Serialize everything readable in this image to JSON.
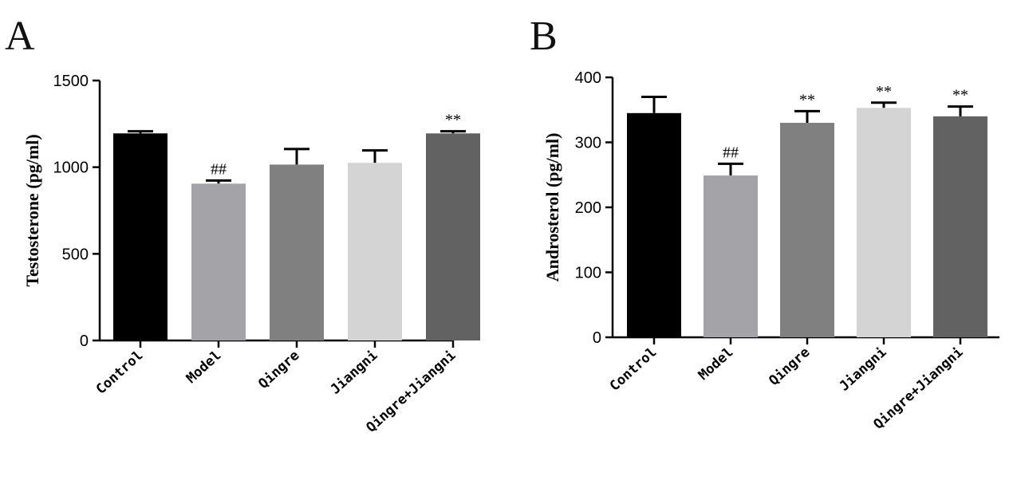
{
  "chart_data": [
    {
      "type": "bar",
      "panel": "A",
      "ylabel": "Testosterone (pg/ml)",
      "ylim": [
        0,
        1500
      ],
      "yticks": [
        "0",
        "500",
        "1000",
        "1500"
      ],
      "ytick_values": [
        0,
        500,
        1000,
        1500
      ],
      "categories": [
        "Control",
        "Model",
        "Qingre",
        "Jiangni",
        "Qingre+Jiangni"
      ],
      "values": [
        1195,
        905,
        1015,
        1025,
        1195
      ],
      "errors": [
        12,
        18,
        90,
        72,
        12
      ],
      "colors": [
        "#000000",
        "#a4a4a8",
        "#808080",
        "#d4d4d4",
        "#626262"
      ],
      "significance": [
        "",
        "##",
        "",
        "",
        "**"
      ],
      "grid": false,
      "legend": "none"
    },
    {
      "type": "bar",
      "panel": "B",
      "ylabel": "Androsterol (pg/ml)",
      "ylim": [
        0,
        400
      ],
      "yticks": [
        "0",
        "100",
        "200",
        "300",
        "400"
      ],
      "ytick_values": [
        0,
        100,
        200,
        300,
        400
      ],
      "categories": [
        "Control",
        "Model",
        "Qingre",
        "Jiangni",
        "Qingre+Jiangni"
      ],
      "values": [
        345,
        249,
        330,
        353,
        340
      ],
      "errors": [
        25,
        18,
        18,
        8,
        15
      ],
      "colors": [
        "#000000",
        "#a4a4a8",
        "#808080",
        "#d4d4d4",
        "#626262"
      ],
      "significance": [
        "",
        "##",
        "**",
        "**",
        "**"
      ],
      "grid": false,
      "legend": "none"
    }
  ]
}
